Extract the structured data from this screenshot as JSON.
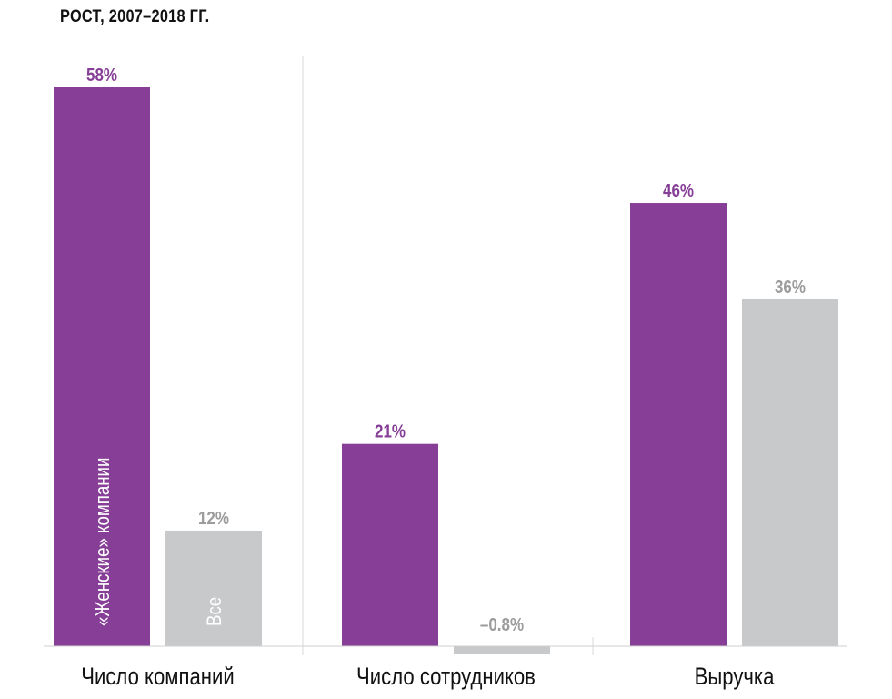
{
  "chart_data": {
    "type": "bar",
    "title": "РОСТ, 2007–2018 ГГ.",
    "xlabel": "",
    "ylabel": "",
    "categories": [
      "Число компаний",
      "Число сотрудников",
      "Выручка"
    ],
    "series": [
      {
        "name": "«Женские» компании",
        "values": [
          58,
          21,
          46
        ],
        "labels": [
          "58%",
          "21%",
          "46%"
        ]
      },
      {
        "name": "Все",
        "values": [
          12,
          -0.8,
          36
        ],
        "labels": [
          "12%",
          "–0.8%",
          "36%"
        ]
      }
    ],
    "ylim": [
      -1,
      58
    ],
    "grid": false,
    "legend": "inside-bars"
  },
  "colors": {
    "women": "#873e97",
    "all": "#c8c9cb",
    "women_label": "#873e97",
    "all_label": "#9c9c9c"
  }
}
